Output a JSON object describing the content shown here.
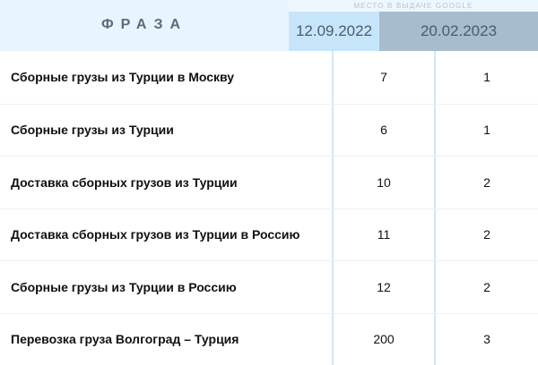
{
  "header": {
    "phrase_label": "ФРАЗА",
    "group_label": "МЕСТО В ВЫДАЧЕ GOOGLE",
    "date1": "12.09.2022",
    "date2": "20.02.2023"
  },
  "rows": [
    {
      "phrase": "Сборные грузы из Турции в Москву",
      "pos1": "7",
      "pos2": "1"
    },
    {
      "phrase": "Сборные грузы из Турции",
      "pos1": "6",
      "pos2": "1"
    },
    {
      "phrase": "Доставка сборных грузов из Турции",
      "pos1": "10",
      "pos2": "2"
    },
    {
      "phrase": "Доставка сборных грузов из Турции в Россию",
      "pos1": "11",
      "pos2": "2"
    },
    {
      "phrase": "Сборные грузы из Турции в Россию",
      "pos1": "12",
      "pos2": "2"
    },
    {
      "phrase": "Перевозка груза Волгоград – Турция",
      "pos1": "200",
      "pos2": "3"
    }
  ],
  "colors": {
    "header_bg": "#e9f5fe",
    "date1_bg": "#c6e5fb",
    "date2_bg": "#a7bccd"
  }
}
